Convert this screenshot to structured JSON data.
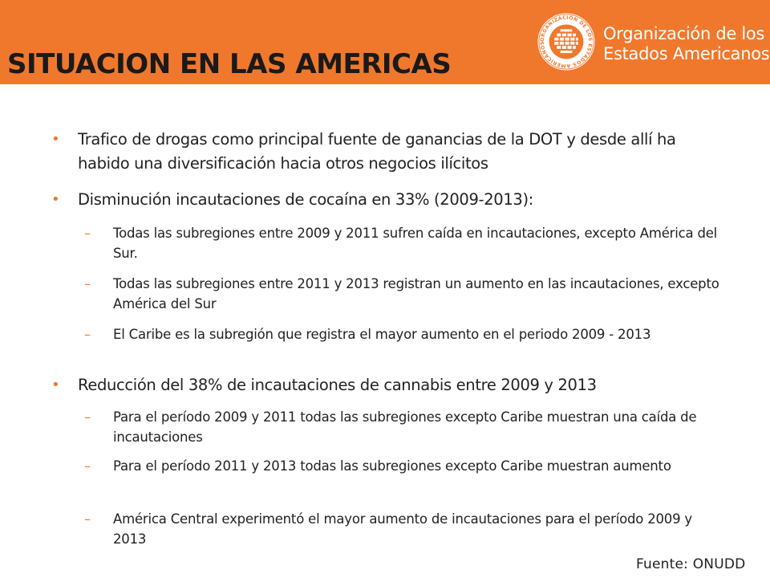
{
  "header": {
    "title": "SITUACION EN LAS AMERICAS",
    "org_line1": "Organización de los",
    "org_line2": "Estados Americanos",
    "seal_text": "ORGANIZACIÓN DE LOS ESTADOS AMERICANOS"
  },
  "colors": {
    "accent": "#f0782d",
    "title_text": "#1a1a1a",
    "body_text": "#222222"
  },
  "bullet_marker": "•",
  "dash_marker": "–",
  "bullets": [
    {
      "text": "Trafico de drogas como principal fuente de ganancias de la DOT y desde allí ha habido una diversificación hacia otros negocios ilícitos"
    },
    {
      "text": "Disminución incautaciones de cocaína en 33% (2009-2013):"
    },
    {
      "text": "Todas las subregiones entre 2009 y 2011 sufren caída en incautaciones, excepto América del Sur."
    },
    {
      "text": "Todas las subregiones entre 2011 y 2013 registran un aumento en las incautaciones, excepto América del Sur"
    },
    {
      "text": "El Caribe es la subregión que registra el mayor aumento en el periodo 2009 - 2013"
    },
    {
      "text": "Reducción del 38%  de incautaciones de cannabis entre 2009 y 2013"
    },
    {
      "text": "Para el período 2009 y 2011 todas las subregiones excepto Caribe muestran una caída de incautaciones"
    },
    {
      "text": "Para el período 2011 y 2013 todas las subregiones excepto Caribe muestran aumento"
    },
    {
      "text": "América Central  experimentó el mayor  aumento de incautaciones para el período 2009 y 2013"
    }
  ],
  "source": "Fuente: ONUDD"
}
